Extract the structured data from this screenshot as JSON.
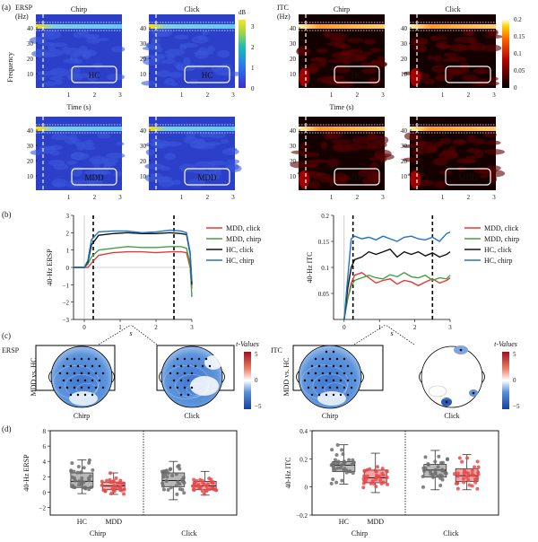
{
  "panel_labels": {
    "a": "(a)",
    "b": "(b)",
    "c": "(c)",
    "d": "(d)"
  },
  "colors": {
    "mdd_click": "#e53935",
    "mdd_chirp": "#43a047",
    "hc_click": "#111111",
    "hc_chirp": "#1e73c8",
    "hc_box": "#b8b8b8",
    "mdd_box": "#f4a6a6"
  },
  "a": {
    "ersp": {
      "label": "ERSP",
      "unit": "(Hz)",
      "cb_unit": "dB",
      "cb_ticks": [
        "3",
        "2",
        "1",
        "0"
      ],
      "cols": [
        "Chirp",
        "Click"
      ],
      "groups": [
        "HC",
        "MDD"
      ],
      "ylabel": "Frequency",
      "xlabel": "Time (s)",
      "yticks": [
        "40",
        "30",
        "20",
        "10"
      ],
      "xticks": [
        "1",
        "2",
        "3"
      ]
    },
    "itc": {
      "label": "ITC",
      "unit": "(Hz)",
      "cb_ticks": [
        "0.2",
        "0.15",
        "0.1",
        "0.05",
        "0"
      ],
      "cols": [
        "Chirp",
        "Click"
      ],
      "groups": [
        "HC",
        "MDD"
      ],
      "xlabel": "Time (s)",
      "yticks": [
        "40",
        "30",
        "20",
        "10"
      ],
      "xticks": [
        "1",
        "2",
        "3"
      ]
    }
  },
  "b": {
    "xlabel": "s",
    "ersp": {
      "chart_data": {
        "type": "line",
        "ylabel": "40-Hz ERSP",
        "xlim": [
          -0.3,
          3.0
        ],
        "ylim": [
          -3,
          3
        ],
        "xticks": [
          "0",
          "1",
          "2",
          "3"
        ],
        "yticks": [
          "3",
          "2",
          "1",
          "0",
          "−1",
          "−2",
          "−3"
        ],
        "series": [
          {
            "name": "MDD, click",
            "color": "#e53935",
            "x": [
              -0.3,
              0,
              0.1,
              0.2,
              0.4,
              0.8,
              1.2,
              1.6,
              2.0,
              2.4,
              2.7,
              2.85,
              2.95,
              3.0
            ],
            "y": [
              0,
              0,
              0,
              0.25,
              0.7,
              0.85,
              0.9,
              0.9,
              0.85,
              0.9,
              0.9,
              0.85,
              0,
              -1.2
            ]
          },
          {
            "name": "MDD, chirp",
            "color": "#43a047",
            "x": [
              -0.3,
              0,
              0.1,
              0.2,
              0.4,
              0.8,
              1.2,
              1.6,
              2.0,
              2.4,
              2.7,
              2.85,
              2.95,
              3.0
            ],
            "y": [
              0,
              0,
              0.2,
              0.6,
              1.0,
              1.1,
              1.2,
              1.15,
              1.15,
              1.2,
              1.2,
              1.1,
              0.2,
              -1.7
            ]
          },
          {
            "name": "HC, click",
            "color": "#111111",
            "x": [
              -0.3,
              0,
              0.1,
              0.2,
              0.4,
              0.8,
              1.2,
              1.6,
              2.0,
              2.4,
              2.7,
              2.85,
              2.95,
              3.0
            ],
            "y": [
              0,
              0,
              0.3,
              1.3,
              1.85,
              1.95,
              2.0,
              1.95,
              1.95,
              2.0,
              1.95,
              1.9,
              0.8,
              -1.0
            ]
          },
          {
            "name": "HC, chirp",
            "color": "#1e73c8",
            "x": [
              -0.3,
              0,
              0.1,
              0.2,
              0.4,
              0.8,
              1.2,
              1.6,
              2.0,
              2.4,
              2.7,
              2.85,
              2.95,
              3.0
            ],
            "y": [
              0,
              0,
              0.4,
              1.6,
              2.05,
              2.1,
              2.1,
              2.0,
              2.05,
              2.15,
              2.1,
              2.0,
              0.9,
              -0.8
            ]
          }
        ]
      }
    },
    "itc": {
      "chart_data": {
        "type": "line",
        "ylabel": "40-Hz ITC",
        "xlim": [
          -0.3,
          3.0
        ],
        "ylim": [
          0,
          0.2
        ],
        "xticks": [
          "0",
          "1",
          "2",
          "3"
        ],
        "yticks": [
          "0.2",
          "0.15",
          "0.1",
          "0.05"
        ],
        "series": [
          {
            "name": "MDD, click",
            "color": "#e53935",
            "x": [
              0,
              0.1,
              0.2,
              0.3,
              0.5,
              0.7,
              0.9,
              1.1,
              1.3,
              1.5,
              1.7,
              1.9,
              2.1,
              2.3,
              2.5,
              2.7,
              2.9,
              3.0
            ],
            "y": [
              0,
              0.04,
              0.07,
              0.085,
              0.09,
              0.08,
              0.07,
              0.075,
              0.078,
              0.068,
              0.075,
              0.072,
              0.065,
              0.072,
              0.078,
              0.07,
              0.075,
              0.08
            ]
          },
          {
            "name": "MDD, chirp",
            "color": "#43a047",
            "x": [
              0,
              0.1,
              0.2,
              0.3,
              0.5,
              0.7,
              0.9,
              1.1,
              1.3,
              1.5,
              1.7,
              1.9,
              2.1,
              2.3,
              2.5,
              2.7,
              2.9,
              3.0
            ],
            "y": [
              0,
              0.04,
              0.065,
              0.075,
              0.08,
              0.085,
              0.08,
              0.078,
              0.086,
              0.082,
              0.09,
              0.082,
              0.08,
              0.085,
              0.075,
              0.08,
              0.078,
              0.085
            ]
          },
          {
            "name": "HC, click",
            "color": "#111111",
            "x": [
              0,
              0.1,
              0.2,
              0.3,
              0.5,
              0.7,
              0.9,
              1.1,
              1.3,
              1.5,
              1.7,
              1.9,
              2.1,
              2.3,
              2.5,
              2.7,
              2.9,
              3.0
            ],
            "y": [
              0,
              0.06,
              0.1,
              0.115,
              0.12,
              0.13,
              0.125,
              0.13,
              0.135,
              0.12,
              0.13,
              0.125,
              0.13,
              0.122,
              0.128,
              0.12,
              0.125,
              0.13
            ]
          },
          {
            "name": "HC, chirp",
            "color": "#1e73c8",
            "x": [
              0,
              0.1,
              0.2,
              0.3,
              0.5,
              0.7,
              0.9,
              1.1,
              1.3,
              1.5,
              1.7,
              1.9,
              2.1,
              2.3,
              2.5,
              2.7,
              2.9,
              3.0
            ],
            "y": [
              0,
              0.08,
              0.155,
              0.16,
              0.155,
              0.158,
              0.153,
              0.16,
              0.155,
              0.15,
              0.158,
              0.16,
              0.155,
              0.153,
              0.158,
              0.15,
              0.165,
              0.168
            ]
          }
        ]
      }
    }
  },
  "c": {
    "ersp_label": "ERSP",
    "itc_label": "ITC",
    "row_label": "MDD vs. HC",
    "cb_title": "t-Values",
    "cb_ticks": [
      "5",
      "0",
      "−5"
    ],
    "cols": [
      "Chirp",
      "Click"
    ]
  },
  "d": {
    "ersp": {
      "chart_data": {
        "type": "box",
        "ylabel": "40-Hz ERSP",
        "ylim": [
          -3,
          8
        ],
        "yticks": [
          "8",
          "6",
          "4",
          "2",
          "0",
          "−2"
        ],
        "groups": [
          "HC",
          "MDD"
        ],
        "conditions": [
          "Chirp",
          "Click"
        ],
        "boxes": [
          {
            "condition": "Chirp",
            "group": "HC",
            "q1": 0.6,
            "median": 1.4,
            "q3": 2.5,
            "whisker_low": -0.2,
            "whisker_high": 4.2,
            "color": "#b8b8b8"
          },
          {
            "condition": "Chirp",
            "group": "MDD",
            "q1": 0.3,
            "median": 0.8,
            "q3": 1.3,
            "whisker_low": -0.3,
            "whisker_high": 2.5,
            "color": "#f4a6a6"
          },
          {
            "condition": "Click",
            "group": "HC",
            "q1": 0.7,
            "median": 1.5,
            "q3": 2.5,
            "whisker_low": -1.0,
            "whisker_high": 4.0,
            "color": "#b8b8b8"
          },
          {
            "condition": "Click",
            "group": "MDD",
            "q1": 0.3,
            "median": 0.8,
            "q3": 1.4,
            "whisker_low": -0.4,
            "whisker_high": 2.7,
            "color": "#f4a6a6"
          }
        ]
      }
    },
    "itc": {
      "chart_data": {
        "type": "box",
        "ylabel": "40-Hz ITC",
        "ylim": [
          -0.2,
          0.4
        ],
        "yticks": [
          "0.4",
          "0.2",
          "0",
          "−0.2"
        ],
        "groups": [
          "HC",
          "MDD"
        ],
        "conditions": [
          "Chirp",
          "Click"
        ],
        "boxes": [
          {
            "condition": "Chirp",
            "group": "HC",
            "q1": 0.11,
            "median": 0.155,
            "q3": 0.18,
            "whisker_low": 0.02,
            "whisker_high": 0.3,
            "color": "#b8b8b8"
          },
          {
            "condition": "Chirp",
            "group": "MDD",
            "q1": 0.03,
            "median": 0.065,
            "q3": 0.12,
            "whisker_low": -0.04,
            "whisker_high": 0.24,
            "color": "#f4a6a6"
          },
          {
            "condition": "Click",
            "group": "HC",
            "q1": 0.07,
            "median": 0.12,
            "q3": 0.16,
            "whisker_low": -0.02,
            "whisker_high": 0.26,
            "color": "#b8b8b8"
          },
          {
            "condition": "Click",
            "group": "MDD",
            "q1": 0.04,
            "median": 0.08,
            "q3": 0.13,
            "whisker_low": -0.02,
            "whisker_high": 0.23,
            "color": "#f4a6a6"
          }
        ]
      }
    }
  }
}
